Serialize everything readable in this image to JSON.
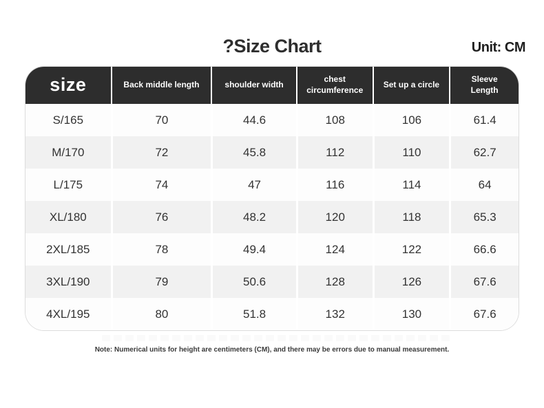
{
  "title": "?Size Chart",
  "unit_label": "Unit: CM",
  "note": "Note: Numerical units for height are centimeters (CM), and there may be errors due to manual measurement.",
  "colors": {
    "header_bg": "#2d2d2d",
    "header_text": "#ffffff",
    "row_bg": "#fdfdfd",
    "row_alt_bg": "#f1f1f1",
    "body_text": "#333333"
  },
  "chart_data": {
    "type": "table",
    "title": "?Size Chart",
    "unit": "Unit: CM",
    "columns": [
      "size",
      "Back middle length",
      "shoulder width",
      "chest circumference",
      "Set up a circle",
      "Sleeve Length"
    ],
    "rows": [
      [
        "S/165",
        "70",
        "44.6",
        "108",
        "106",
        "61.4"
      ],
      [
        "M/170",
        "72",
        "45.8",
        "112",
        "110",
        "62.7"
      ],
      [
        "L/175",
        "74",
        "47",
        "116",
        "114",
        "64"
      ],
      [
        "XL/180",
        "76",
        "48.2",
        "120",
        "118",
        "65.3"
      ],
      [
        "2XL/185",
        "78",
        "49.4",
        "124",
        "122",
        "66.6"
      ],
      [
        "3XL/190",
        "79",
        "50.6",
        "128",
        "126",
        "67.6"
      ],
      [
        "4XL/195",
        "80",
        "51.8",
        "132",
        "130",
        "67.6"
      ]
    ],
    "note": "Note: Numerical units for height are centimeters (CM), and there may be errors due to manual measurement."
  }
}
